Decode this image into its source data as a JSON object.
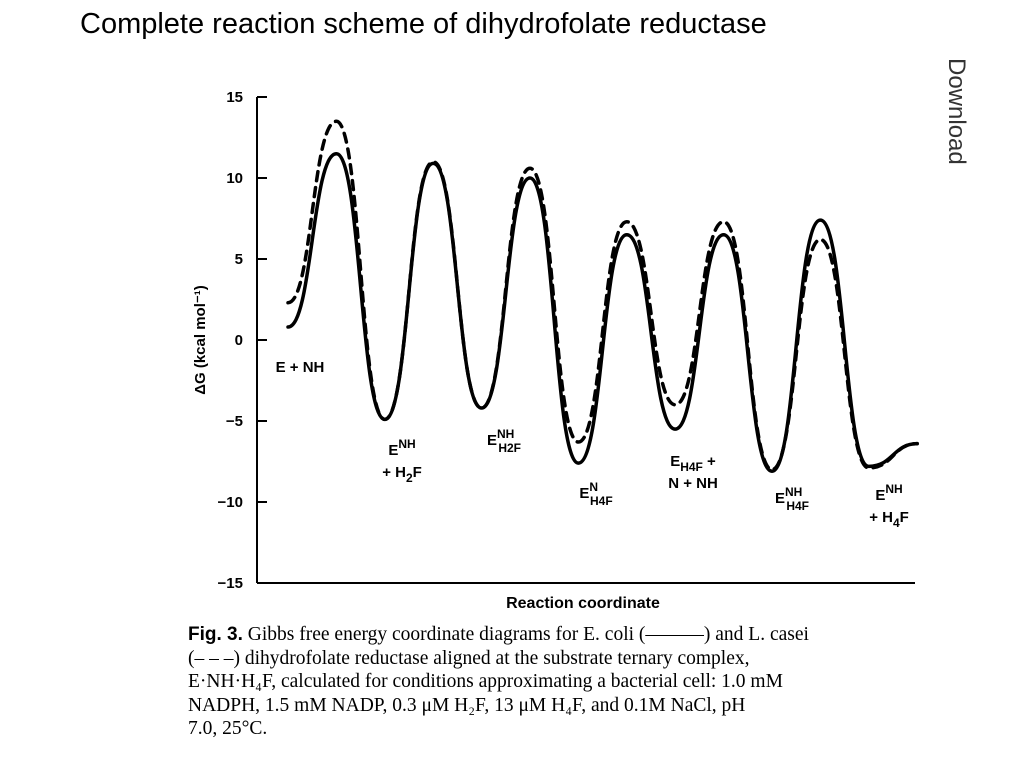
{
  "slide": {
    "title": "Complete reaction scheme of dihydrofolate reductase",
    "side_text": "Download"
  },
  "chart_data": {
    "type": "line",
    "xlabel": "Reaction coordinate",
    "ylabel": "ΔG (kcal mol⁻¹)",
    "ylim": [
      -15,
      15
    ],
    "yticks": [
      15,
      10,
      5,
      0,
      -5,
      -10,
      -15
    ],
    "series": [
      {
        "name": "E. coli",
        "style": "solid",
        "x": [
          0,
          1,
          2,
          3,
          4,
          5,
          6,
          7,
          8,
          9,
          10,
          11,
          12,
          13
        ],
        "values": [
          0.8,
          11.5,
          -4.9,
          10.9,
          -4.2,
          10.0,
          -7.6,
          6.5,
          -5.5,
          6.5,
          -8.1,
          7.4,
          -7.8,
          -6.4
        ]
      },
      {
        "name": "L. casei",
        "style": "dashed",
        "x": [
          0,
          1,
          2,
          3,
          4,
          5,
          6,
          7,
          8,
          9,
          10,
          11,
          12,
          13
        ],
        "values": [
          2.3,
          13.5,
          -4.9,
          11.0,
          -4.2,
          10.6,
          -6.3,
          7.3,
          -4.0,
          7.3,
          -8.0,
          6.2,
          -7.9,
          -6.4
        ]
      }
    ],
    "annotations": [
      {
        "id": "s1",
        "x": 0,
        "y": 0,
        "lines": [
          {
            "main": "E + NH"
          }
        ]
      },
      {
        "id": "s2",
        "x": 2,
        "y": 0,
        "lines": [
          {
            "main": "E",
            "sup": "NH"
          },
          {
            "main": "+ H",
            "sub": "2",
            "tail": "F"
          }
        ]
      },
      {
        "id": "s3",
        "x": 4,
        "y": 0,
        "lines": [
          {
            "main": "E",
            "sup": "NH",
            "sub": "H2F"
          }
        ]
      },
      {
        "id": "s4",
        "x": 6,
        "y": 0,
        "lines": [
          {
            "main": "E",
            "sup": "N",
            "sub": "H4F"
          }
        ]
      },
      {
        "id": "s5",
        "x": 8,
        "y": 0,
        "lines": [
          {
            "main": "E",
            "sub": "H4F",
            "tail": " +"
          },
          {
            "main": "N + NH"
          }
        ]
      },
      {
        "id": "s6",
        "x": 10,
        "y": 0,
        "lines": [
          {
            "main": "E",
            "sup": "NH",
            "sub": "H4F"
          }
        ]
      },
      {
        "id": "s7",
        "x": 12,
        "y": 0,
        "lines": [
          {
            "main": "E",
            "sup": "NH"
          },
          {
            "main": "+ H",
            "sub": "4",
            "tail": "F"
          }
        ]
      }
    ]
  },
  "caption": {
    "label": "Fig. 3.",
    "text": " Gibbs free energy coordinate diagrams for E. coli (———) and L. casei\n(– – –) dihydrofolate reductase aligned at the substrate ternary complex,\nE·NH·H₄F, calculated for conditions approximating a bacterial cell: 1.0 mM\nNADPH, 1.5 mM NADP, 0.3 μM H₂F, 13 μM H₄F, and 0.1M NaCl, pH\n7.0, 25°C."
  }
}
